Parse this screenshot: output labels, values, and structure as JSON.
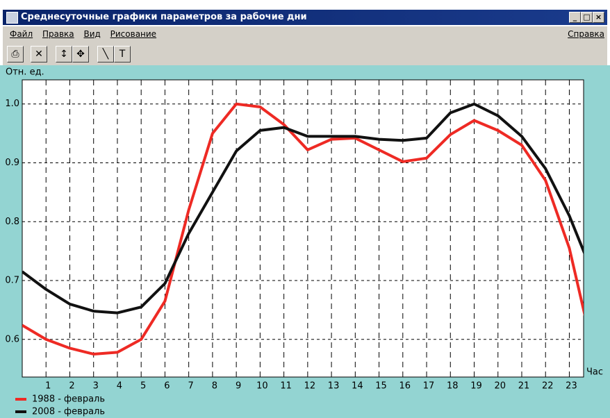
{
  "window": {
    "title": "Среднесуточные графики параметров за рабочие дни",
    "menu": [
      "Файл",
      "Правка",
      "Вид",
      "Рисование"
    ],
    "help_menu": "Справка"
  },
  "chart_data": {
    "type": "line",
    "y_label": "Отн. ед.",
    "x_label": "Час",
    "x": [
      0,
      1,
      2,
      3,
      4,
      5,
      6,
      7,
      8,
      9,
      10,
      11,
      12,
      13,
      14,
      15,
      16,
      17,
      18,
      19,
      20,
      21,
      22,
      23,
      24
    ],
    "xlim": [
      0,
      23.6
    ],
    "xticks": [
      1,
      2,
      3,
      4,
      5,
      6,
      7,
      8,
      9,
      10,
      11,
      12,
      13,
      14,
      15,
      16,
      17,
      18,
      19,
      20,
      21,
      22,
      23
    ],
    "ylim": [
      0.536,
      1.041
    ],
    "yticks": [
      0.6,
      0.7,
      0.8,
      0.9,
      {
        "value": 1,
        "label": "1.0"
      }
    ],
    "grid": true,
    "series": [
      {
        "name": "1988 - февраль",
        "color": "#ee2a24",
        "values": [
          0.624,
          0.6,
          0.585,
          0.575,
          0.578,
          0.6,
          0.665,
          0.82,
          0.95,
          1.0,
          0.995,
          0.965,
          0.922,
          0.94,
          0.942,
          0.922,
          0.902,
          0.908,
          0.948,
          0.972,
          0.955,
          0.93,
          0.87,
          0.755,
          0.58
        ]
      },
      {
        "name": "2008 - февраль",
        "color": "#111111",
        "values": [
          0.715,
          0.685,
          0.66,
          0.648,
          0.645,
          0.655,
          0.695,
          0.78,
          0.85,
          0.92,
          0.955,
          0.96,
          0.945,
          0.945,
          0.945,
          0.94,
          0.938,
          0.942,
          0.985,
          1.0,
          0.98,
          0.945,
          0.89,
          0.81,
          0.71
        ]
      }
    ]
  }
}
